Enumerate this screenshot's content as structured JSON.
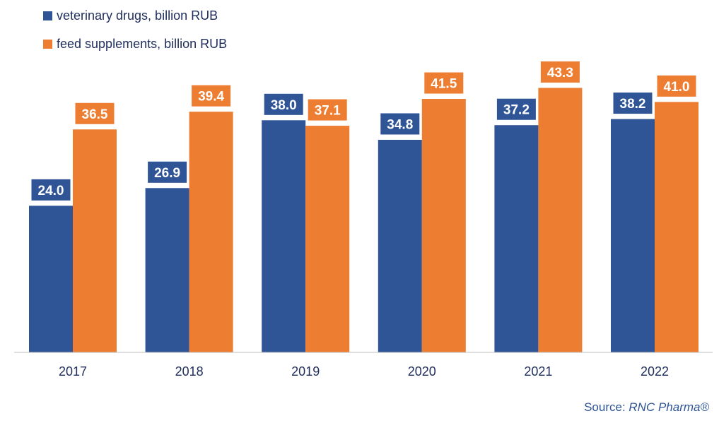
{
  "chart_data": {
    "type": "bar",
    "categories": [
      "2017",
      "2018",
      "2019",
      "2020",
      "2021",
      "2022"
    ],
    "series": [
      {
        "name": "veterinary drugs, billion RUB",
        "color": "#2f5597",
        "values": [
          24.0,
          26.9,
          38.0,
          34.8,
          37.2,
          38.2
        ],
        "labels": [
          "24.0",
          "26.9",
          "38.0",
          "34.8",
          "37.2",
          "38.2"
        ]
      },
      {
        "name": "feed supplements, billion RUB",
        "color": "#ed7d31",
        "values": [
          36.5,
          39.4,
          37.1,
          41.5,
          43.3,
          41.0
        ],
        "labels": [
          "36.5",
          "39.4",
          "37.1",
          "41.5",
          "43.3",
          "41.0"
        ]
      }
    ],
    "ylim": [
      0,
      48
    ],
    "grid": false,
    "legend_position": "top-left",
    "title": "",
    "xlabel": "",
    "ylabel": ""
  },
  "source": {
    "prefix": "Source: ",
    "name": "RNC Pharma®"
  }
}
